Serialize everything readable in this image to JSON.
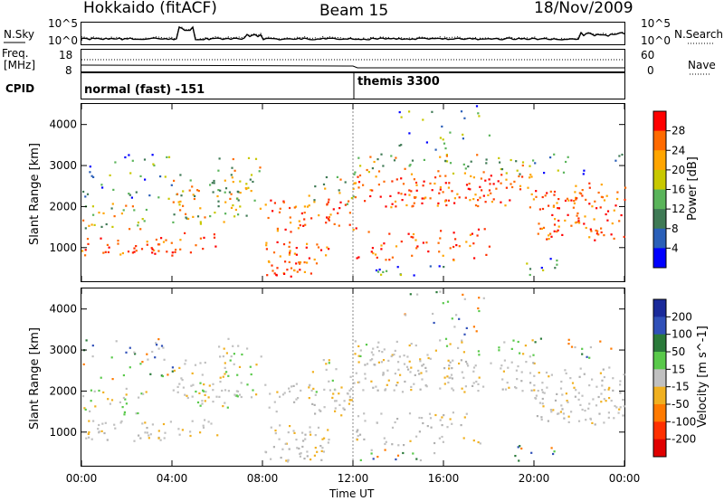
{
  "header": {
    "station": "Hokkaido (fitACF)",
    "beam": "Beam 15",
    "date": "18/Nov/2009"
  },
  "top_panels": {
    "nsky_label": "N.Sky",
    "nsky_ticks": [
      "10^5",
      "10^0"
    ],
    "nsearch_label": "N.Search",
    "nsearch_ticks": [
      "10^5",
      "10^0"
    ],
    "freq_label_1": "Freq.",
    "freq_label_2": "[MHz]",
    "freq_ticks": [
      "18",
      "8"
    ],
    "nave_label": "Nave",
    "nave_ticks": [
      "60",
      "0"
    ],
    "cpid_label": "CPID",
    "cpid_modes": [
      "normal (fast) -151",
      "themis 3300"
    ]
  },
  "chart_data": [
    {
      "type": "heatmap",
      "ylabel": "Slant Range [km]",
      "xlabel": "Time UT",
      "x_ticks": [
        "00:00",
        "04:00",
        "08:00",
        "12:00",
        "16:00",
        "20:00",
        "00:00"
      ],
      "y_ticks": [
        1000,
        2000,
        3000,
        4000
      ],
      "ylim": [
        180,
        4500
      ],
      "colorbar_label": "Power [dB]",
      "colorbar_ticks": [
        4,
        8,
        12,
        16,
        20,
        24,
        28
      ],
      "colors": [
        "#0000ff",
        "#2a5fb8",
        "#3f7a55",
        "#5ab45a",
        "#c8c800",
        "#ffa500",
        "#ff6a00",
        "#ff0000"
      ]
    },
    {
      "type": "heatmap",
      "ylabel": "Slant Range [km]",
      "xlabel": "Time UT",
      "x_ticks": [
        "00:00",
        "04:00",
        "08:00",
        "12:00",
        "16:00",
        "20:00",
        "00:00"
      ],
      "y_ticks": [
        1000,
        2000,
        3000,
        4000
      ],
      "ylim": [
        180,
        4500
      ],
      "colorbar_label": "Velocity [m s^-1]",
      "colorbar_ticks": [
        200,
        100,
        50,
        15,
        -15,
        -50,
        -100,
        -200
      ],
      "colors": [
        "#1a2a9a",
        "#3050b8",
        "#2a7a3a",
        "#59c94a",
        "#c0c0c0",
        "#f0b020",
        "#ff7a00",
        "#ff3000",
        "#e00000"
      ]
    }
  ]
}
